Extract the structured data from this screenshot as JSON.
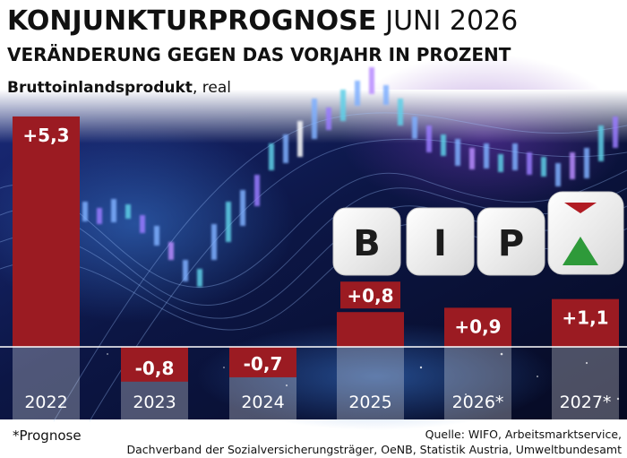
{
  "header": {
    "title": "KONJUNKTURPROGNOSE",
    "title_date": "JUNI 2026",
    "subtitle": "VERÄNDERUNG GEGEN DAS VORJAHR IN PROZENT",
    "metric_bold": "Bruttoinlandsprodukt",
    "metric_rest": ", real"
  },
  "dice": {
    "letters": [
      "B",
      "I",
      "P"
    ]
  },
  "footer": {
    "footnote": "*Prognose",
    "source_line1": "Quelle: WIFO, Arbeitsmarktservice,",
    "source_line2": "Dachverband der Sozialversicherungsträger, OeNB, Statistik Austria, Umweltbundesamt"
  },
  "colors": {
    "bar": "#9b1b22",
    "background_dark": "#0b1335",
    "column_overlay": "#ffffff",
    "axis_line": "#ffffff"
  },
  "chart_data": {
    "type": "bar",
    "title": "KONJUNKTURPROGNOSE",
    "subtitle": "VERÄNDERUNG GEGEN DAS VORJAHR IN PROZENT",
    "series": [
      {
        "name": "Bruttoinlandsprodukt, real",
        "values": [
          5.3,
          -0.8,
          -0.7,
          0.8,
          0.9,
          1.1
        ]
      }
    ],
    "categories": [
      "2022",
      "2023",
      "2024",
      "2025",
      "2026*",
      "2027*"
    ],
    "value_labels": [
      "+5,3",
      "-0,8",
      "-0,7",
      "+0,8",
      "+0,9",
      "+1,1"
    ],
    "unit": "Prozent",
    "ylim": [
      -0.8,
      5.3
    ],
    "grid": false,
    "legend": "none"
  }
}
